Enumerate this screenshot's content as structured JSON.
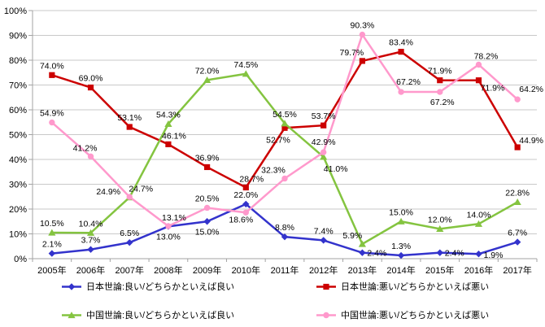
{
  "chart_data": {
    "type": "line",
    "categories": [
      "2005年",
      "2006年",
      "2007年",
      "2008年",
      "2009年",
      "2010年",
      "2011年",
      "2012年",
      "2013年",
      "2014年",
      "2015年",
      "2016年",
      "2017年"
    ],
    "series": [
      {
        "name": "日本世論:良い/どちらかといえば良い",
        "color": "#3333CC",
        "marker": "diamond",
        "values": [
          2.1,
          3.7,
          6.5,
          13.0,
          15.0,
          22.0,
          8.8,
          7.4,
          2.4,
          1.3,
          2.4,
          1.9,
          6.7
        ]
      },
      {
        "name": "日本世論:悪い/どちらかといえば悪い",
        "color": "#CC0000",
        "marker": "square",
        "values": [
          74.0,
          69.0,
          53.1,
          46.1,
          36.9,
          28.7,
          52.7,
          53.7,
          79.7,
          83.4,
          71.9,
          71.9,
          44.9
        ]
      },
      {
        "name": "中国世論:良い/どちらかといえば良い",
        "color": "#84C440",
        "marker": "triangle",
        "values": [
          10.5,
          10.4,
          24.7,
          54.3,
          72.0,
          74.5,
          54.5,
          41.0,
          5.9,
          15.0,
          12.0,
          14.0,
          22.8
        ]
      },
      {
        "name": "中国世論:悪い/どちらかといえば悪い",
        "color": "#FF99CC",
        "marker": "circle",
        "values": [
          54.9,
          41.2,
          24.9,
          13.1,
          20.5,
          18.6,
          32.3,
          42.9,
          90.3,
          67.2,
          67.2,
          78.2,
          64.2
        ]
      }
    ],
    "ylim": [
      0,
      100
    ],
    "y_tick_step": 10,
    "y_tick_labels": [
      "0%",
      "10%",
      "20%",
      "30%",
      "40%",
      "50%",
      "60%",
      "70%",
      "80%",
      "90%",
      "100%"
    ],
    "data_label_suffix": "%",
    "grid": true,
    "legend_position": "bottom",
    "colors": {
      "grid": "#C9C9C9",
      "axis": "#A3A3A3",
      "label_text": "#000000",
      "background": "#FFFFFF"
    },
    "label_offsets": [
      {
        "3": [
          0,
          16
        ],
        "4": [
          0,
          16
        ],
        "8": [
          18,
          4
        ],
        "10": [
          18,
          4
        ],
        "11": [
          18,
          5
        ]
      },
      {
        "3": [
          7,
          -7
        ],
        "5": [
          7,
          -7
        ],
        "6": [
          -8,
          18
        ],
        "8": [
          -13,
          -7
        ],
        "11": [
          17,
          13
        ],
        "12": [
          17,
          -5
        ]
      },
      {
        "2": [
          14,
          -7
        ],
        "7": [
          15,
          18
        ],
        "8": [
          -12,
          -7
        ]
      },
      {
        "1": [
          -7,
          -7
        ],
        "2": [
          -26,
          -3
        ],
        "3": [
          7,
          -7
        ],
        "5": [
          -6,
          12
        ],
        "6": [
          -14,
          -7
        ],
        "7": [
          0,
          -9
        ],
        "9": [
          9,
          -9
        ],
        "10": [
          3,
          16
        ],
        "11": [
          9,
          -7
        ],
        "12": [
          17,
          -9
        ]
      }
    ]
  }
}
